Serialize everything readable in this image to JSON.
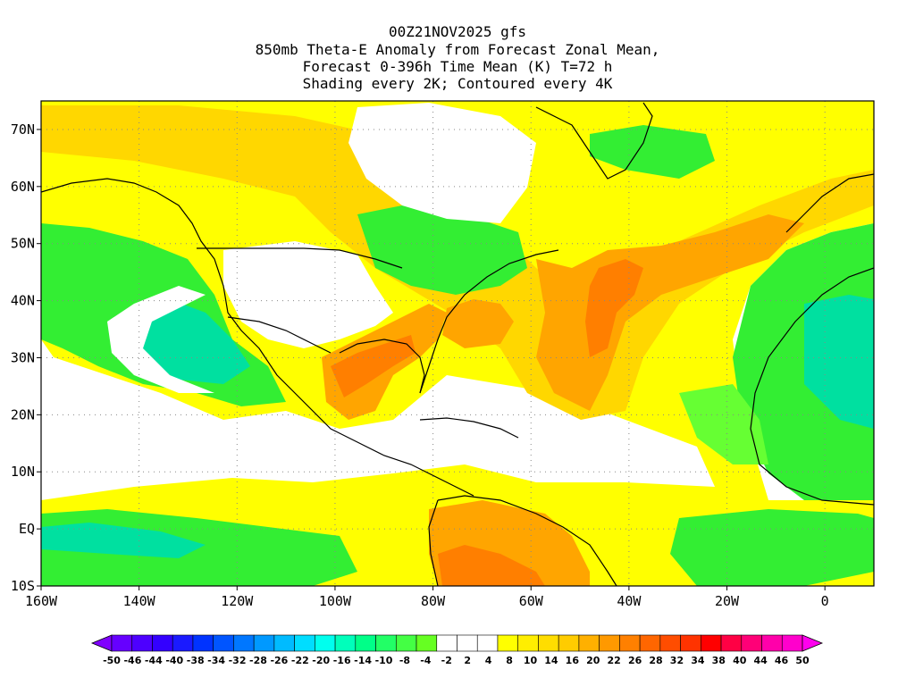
{
  "header": {
    "line1": "00Z21NOV2025 gfs",
    "line2": "850mb Theta-E Anomaly from Forecast Zonal Mean,",
    "line3": "Forecast 0-396h Time Mean (K) T=72 h",
    "line4": "Shading every 2K; Contoured every 4K"
  },
  "map": {
    "lon_range": [
      -160,
      10
    ],
    "lat_range": [
      -10,
      75
    ],
    "lat_ticks": [
      {
        "value": 70,
        "label": "70N"
      },
      {
        "value": 60,
        "label": "60N"
      },
      {
        "value": 50,
        "label": "50N"
      },
      {
        "value": 40,
        "label": "40N"
      },
      {
        "value": 30,
        "label": "30N"
      },
      {
        "value": 20,
        "label": "20N"
      },
      {
        "value": 10,
        "label": "10N"
      },
      {
        "value": 0,
        "label": "EQ"
      },
      {
        "value": -10,
        "label": "10S"
      }
    ],
    "lon_ticks": [
      {
        "value": -160,
        "label": "160W"
      },
      {
        "value": -140,
        "label": "140W"
      },
      {
        "value": -120,
        "label": "120W"
      },
      {
        "value": -100,
        "label": "100W"
      },
      {
        "value": -80,
        "label": "80W"
      },
      {
        "value": -60,
        "label": "60W"
      },
      {
        "value": -40,
        "label": "40W"
      },
      {
        "value": -20,
        "label": "20W"
      },
      {
        "value": 0,
        "label": "0"
      }
    ],
    "colors": {
      "yellow": "#ffff00",
      "light_orange": "#ffd700",
      "orange": "#ffa500",
      "dark_orange": "#ff7f00",
      "red_orange": "#ff5a00",
      "green": "#33ee33",
      "light_green": "#66ff33",
      "teal": "#00e0a0",
      "coast": "#000000"
    }
  },
  "colorbar": {
    "labels": [
      "-50",
      "-46",
      "-44",
      "-40",
      "-38",
      "-34",
      "-32",
      "-28",
      "-26",
      "-22",
      "-20",
      "-16",
      "-14",
      "-10",
      "-8",
      "-4",
      "-2",
      "2",
      "4",
      "8",
      "10",
      "14",
      "16",
      "20",
      "22",
      "26",
      "28",
      "32",
      "34",
      "38",
      "40",
      "44",
      "46",
      "50"
    ],
    "colors": [
      "#8000ff",
      "#6600ff",
      "#4d00ff",
      "#3300ff",
      "#1a1aff",
      "#0033ff",
      "#0055ff",
      "#0077ff",
      "#0099ff",
      "#00bbff",
      "#00ddff",
      "#00ffee",
      "#00ffbb",
      "#00ff88",
      "#22ff66",
      "#44ff44",
      "#66ff22",
      "#ffffff",
      "#ffffff",
      "#ffffff",
      "#ffff00",
      "#ffee00",
      "#ffdd00",
      "#ffcc00",
      "#ffb000",
      "#ff9900",
      "#ff8000",
      "#ff6600",
      "#ff4d00",
      "#ff3300",
      "#ff0000",
      "#ff0044",
      "#ff0077",
      "#ff00aa",
      "#ff00cc",
      "#ff00ee"
    ]
  }
}
